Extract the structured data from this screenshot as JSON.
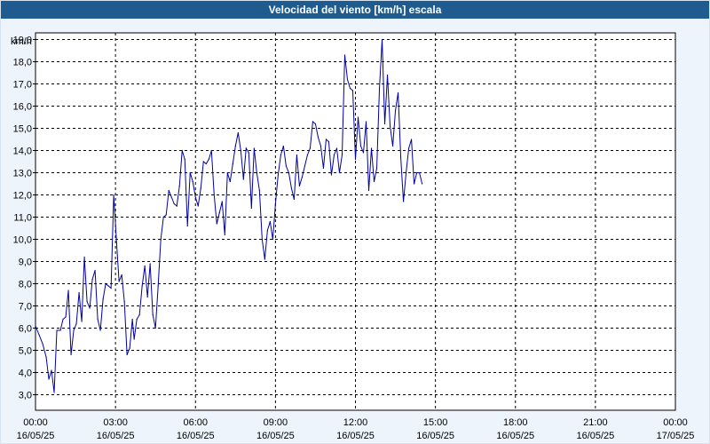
{
  "title": "Velocidad del viento [km/h] escala",
  "chart_data": {
    "type": "line",
    "title": "Velocidad del viento [km/h] escala",
    "ylabel": "km/h",
    "xlabel": "",
    "ylim": [
      2.3,
      19.3
    ],
    "xlim": [
      0,
      1440
    ],
    "grid": true,
    "y_ticks": [
      "3,0",
      "4,0",
      "5,0",
      "6,0",
      "7,0",
      "8,0",
      "9,0",
      "10,0",
      "11,0",
      "12,0",
      "13,0",
      "14,0",
      "15,0",
      "16,0",
      "17,0",
      "18,0",
      "19,0"
    ],
    "y_tick_values": [
      3,
      4,
      5,
      6,
      7,
      8,
      9,
      10,
      11,
      12,
      13,
      14,
      15,
      16,
      17,
      18,
      19
    ],
    "x_ticks": [
      {
        "time": "00:00",
        "date": "16/05/25",
        "minute": 0
      },
      {
        "time": "03:00",
        "date": "16/05/25",
        "minute": 180
      },
      {
        "time": "06:00",
        "date": "16/05/25",
        "minute": 360
      },
      {
        "time": "09:00",
        "date": "16/05/25",
        "minute": 540
      },
      {
        "time": "12:00",
        "date": "16/05/25",
        "minute": 720
      },
      {
        "time": "15:00",
        "date": "16/05/25",
        "minute": 900
      },
      {
        "time": "18:00",
        "date": "16/05/25",
        "minute": 1080
      },
      {
        "time": "21:00",
        "date": "16/05/25",
        "minute": 1260
      },
      {
        "time": "00:00",
        "date": "17/05/25",
        "minute": 1440
      }
    ],
    "series": [
      {
        "color": "#0000a0",
        "x_unit": "minutes from 00:00 16/05/25",
        "points": [
          [
            0,
            6.1
          ],
          [
            8,
            5.7
          ],
          [
            16,
            5.3
          ],
          [
            24,
            4.7
          ],
          [
            30,
            3.7
          ],
          [
            36,
            4.1
          ],
          [
            42,
            3.1
          ],
          [
            48,
            5.9
          ],
          [
            56,
            5.9
          ],
          [
            62,
            6.4
          ],
          [
            68,
            6.5
          ],
          [
            74,
            7.7
          ],
          [
            80,
            4.8
          ],
          [
            86,
            5.9
          ],
          [
            92,
            6.2
          ],
          [
            98,
            7.6
          ],
          [
            104,
            6.3
          ],
          [
            110,
            9.2
          ],
          [
            116,
            7.2
          ],
          [
            122,
            6.9
          ],
          [
            128,
            8.2
          ],
          [
            134,
            8.6
          ],
          [
            140,
            6.4
          ],
          [
            146,
            5.9
          ],
          [
            152,
            7.3
          ],
          [
            158,
            8.0
          ],
          [
            164,
            7.9
          ],
          [
            170,
            7.8
          ],
          [
            176,
            12.0
          ],
          [
            182,
            10.0
          ],
          [
            188,
            8.1
          ],
          [
            194,
            8.4
          ],
          [
            200,
            7.2
          ],
          [
            206,
            4.8
          ],
          [
            212,
            5.1
          ],
          [
            218,
            6.4
          ],
          [
            222,
            5.5
          ],
          [
            228,
            6.4
          ],
          [
            234,
            6.6
          ],
          [
            240,
            7.9
          ],
          [
            246,
            8.8
          ],
          [
            252,
            7.4
          ],
          [
            258,
            8.9
          ],
          [
            264,
            6.6
          ],
          [
            270,
            6.0
          ],
          [
            276,
            7.9
          ],
          [
            282,
            10.0
          ],
          [
            288,
            11.0
          ],
          [
            294,
            11.1
          ],
          [
            300,
            12.2
          ],
          [
            306,
            11.9
          ],
          [
            312,
            11.6
          ],
          [
            318,
            11.5
          ],
          [
            324,
            12.4
          ],
          [
            330,
            14.0
          ],
          [
            336,
            13.6
          ],
          [
            342,
            10.6
          ],
          [
            348,
            13.0
          ],
          [
            354,
            12.6
          ],
          [
            360,
            11.9
          ],
          [
            366,
            11.5
          ],
          [
            372,
            12.3
          ],
          [
            378,
            13.5
          ],
          [
            384,
            13.4
          ],
          [
            390,
            13.6
          ],
          [
            396,
            14.0
          ],
          [
            402,
            12.0
          ],
          [
            408,
            10.7
          ],
          [
            414,
            11.2
          ],
          [
            420,
            11.7
          ],
          [
            426,
            10.2
          ],
          [
            432,
            13.0
          ],
          [
            438,
            12.6
          ],
          [
            444,
            13.4
          ],
          [
            450,
            14.2
          ],
          [
            456,
            14.8
          ],
          [
            462,
            14.0
          ],
          [
            468,
            12.7
          ],
          [
            474,
            14.1
          ],
          [
            480,
            13.9
          ],
          [
            486,
            11.4
          ],
          [
            492,
            14.1
          ],
          [
            498,
            13.0
          ],
          [
            504,
            12.2
          ],
          [
            510,
            10.0
          ],
          [
            516,
            9.1
          ],
          [
            522,
            10.4
          ],
          [
            528,
            10.8
          ],
          [
            534,
            10.0
          ],
          [
            540,
            11.6
          ],
          [
            546,
            12.9
          ],
          [
            552,
            13.8
          ],
          [
            558,
            14.2
          ],
          [
            564,
            13.3
          ],
          [
            570,
            13.0
          ],
          [
            576,
            12.3
          ],
          [
            582,
            11.8
          ],
          [
            588,
            13.8
          ],
          [
            594,
            12.4
          ],
          [
            600,
            12.8
          ],
          [
            606,
            13.3
          ],
          [
            612,
            13.8
          ],
          [
            618,
            14.1
          ],
          [
            624,
            15.3
          ],
          [
            630,
            15.2
          ],
          [
            636,
            14.6
          ],
          [
            642,
            14.2
          ],
          [
            648,
            13.2
          ],
          [
            654,
            14.5
          ],
          [
            660,
            14.4
          ],
          [
            666,
            12.9
          ],
          [
            672,
            13.8
          ],
          [
            678,
            14.1
          ],
          [
            684,
            13.0
          ],
          [
            690,
            13.8
          ],
          [
            696,
            18.3
          ],
          [
            702,
            17.2
          ],
          [
            708,
            16.8
          ],
          [
            714,
            16.7
          ],
          [
            720,
            13.6
          ],
          [
            726,
            15.5
          ],
          [
            732,
            14.2
          ],
          [
            738,
            13.9
          ],
          [
            744,
            15.3
          ],
          [
            750,
            12.2
          ],
          [
            756,
            14.1
          ],
          [
            762,
            12.6
          ],
          [
            768,
            13.2
          ],
          [
            774,
            16.8
          ],
          [
            780,
            19.0
          ],
          [
            786,
            15.2
          ],
          [
            792,
            17.4
          ],
          [
            798,
            15.1
          ],
          [
            804,
            14.2
          ],
          [
            810,
            15.8
          ],
          [
            816,
            16.6
          ],
          [
            822,
            13.7
          ],
          [
            828,
            11.7
          ],
          [
            834,
            13.0
          ],
          [
            840,
            14.1
          ],
          [
            846,
            14.5
          ],
          [
            852,
            12.5
          ],
          [
            858,
            13.0
          ],
          [
            864,
            13.0
          ],
          [
            870,
            12.5
          ]
        ]
      }
    ]
  }
}
